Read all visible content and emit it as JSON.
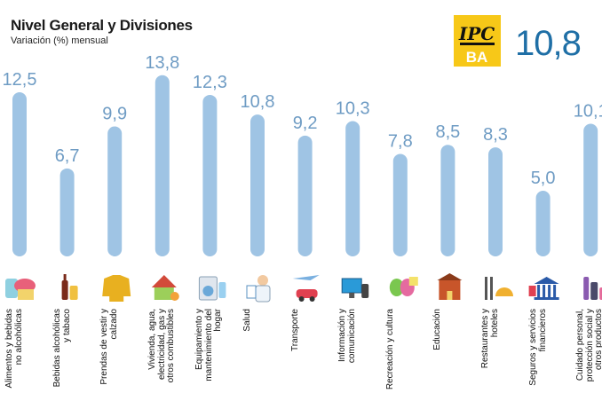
{
  "header": {
    "title": "Nivel General y Divisiones",
    "subtitle": "Variación (%) mensual"
  },
  "logo": {
    "text_top": "IPC",
    "text_bottom": "BA"
  },
  "overall_value": "10,8",
  "colors": {
    "bar": "#9fc4e4",
    "value": "#6f9cc4",
    "overall": "#1f6fa6",
    "logo_bg": "#f7c818"
  },
  "icons": [
    "food-basket-icon",
    "wine-bottle-icon",
    "jacket-icon",
    "house-icon",
    "washing-machine-icon",
    "doctor-icon",
    "car-plane-icon",
    "computer-icon",
    "theater-masks-icon",
    "school-icon",
    "cutlery-icon",
    "bank-icon",
    "personal-care-icon"
  ],
  "chart_data": {
    "type": "bar",
    "title": "Nivel General y Divisiones",
    "subtitle": "Variación (%) mensual",
    "categories": [
      "Alimentos y bebidas no alcohólicas",
      "Bebidas alcohólicas y tabaco",
      "Prendas de vestir y calzado",
      "Vivienda, agua, electricidad, gas y otros combustibles",
      "Equipamiento y mantenimiento del hogar",
      "Salud",
      "Transporte",
      "Información y comunicación",
      "Recreación y cultura",
      "Educación",
      "Restaurantes y hoteles",
      "Seguros y servicios financieros",
      "Cuidado personal, protección social y otros productos"
    ],
    "values": [
      12.5,
      6.7,
      9.9,
      13.8,
      12.3,
      10.8,
      9.2,
      10.3,
      7.8,
      8.5,
      8.3,
      5.0,
      10.1
    ],
    "value_labels": [
      "12,5",
      "6,7",
      "9,9",
      "13,8",
      "12,3",
      "10,8",
      "9,2",
      "10,3",
      "7,8",
      "8,5",
      "8,3",
      "5,0",
      "10,1"
    ],
    "ylim": [
      0,
      14
    ],
    "xlabel": "",
    "ylabel": "",
    "grid": false,
    "legend": "none"
  }
}
